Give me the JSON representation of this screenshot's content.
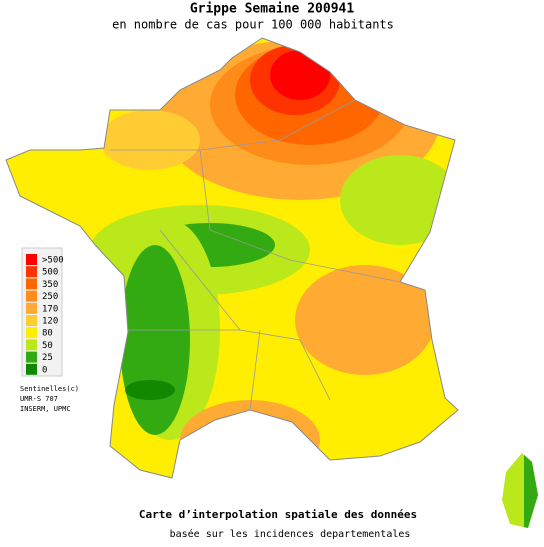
{
  "title": "Grippe Semaine 200941",
  "subtitle": "en nombre de cas pour 100 000 habitants",
  "legend": [
    {
      "label": ">500",
      "color": "#ff0000"
    },
    {
      "label": "500",
      "color": "#ff3300"
    },
    {
      "label": "350",
      "color": "#ff6600"
    },
    {
      "label": "250",
      "color": "#ff8c1a"
    },
    {
      "label": "170",
      "color": "#ffaa33"
    },
    {
      "label": "120",
      "color": "#ffcc33"
    },
    {
      "label": "80",
      "color": "#ffee00"
    },
    {
      "label": "50",
      "color": "#bbe81a"
    },
    {
      "label": "25",
      "color": "#33aa11"
    },
    {
      "label": "0",
      "color": "#118800"
    }
  ],
  "credits": [
    "Sentinelles(c)",
    "UMR-S 707",
    "INSERM, UPMC"
  ],
  "footer": {
    "line1": "Carte d’interpolation spatiale des données",
    "line2": "basée sur les incidences departementales"
  }
}
